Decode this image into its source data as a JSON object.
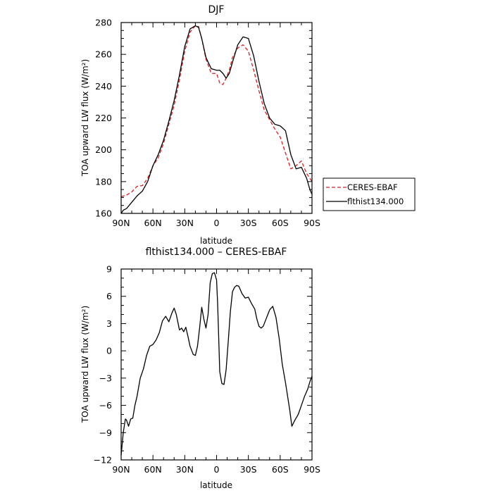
{
  "chart_data": [
    {
      "type": "line",
      "title": "DJF",
      "xlabel": "latitude",
      "ylabel": "TOA upward LW flux (W/m²)",
      "x_ticks": [
        {
          "value": 90,
          "label": "90N"
        },
        {
          "value": 60,
          "label": "60N"
        },
        {
          "value": 30,
          "label": "30N"
        },
        {
          "value": 0,
          "label": "0"
        },
        {
          "value": -30,
          "label": "30S"
        },
        {
          "value": -60,
          "label": "60S"
        },
        {
          "value": -90,
          "label": "90S"
        }
      ],
      "xlim": [
        90,
        -90
      ],
      "ylim": [
        160,
        280
      ],
      "y_ticks": [
        160,
        180,
        200,
        220,
        240,
        260,
        280
      ],
      "y_tick_labels": [
        "160",
        "180",
        "200",
        "220",
        "240",
        "260",
        "280"
      ],
      "legend": "right",
      "series": [
        {
          "name": "CERES-EBAF",
          "color": "#e41a1c",
          "dash": "dashed",
          "x": [
            90,
            85,
            80,
            75,
            70,
            65,
            60,
            55,
            50,
            45,
            40,
            35,
            30,
            25,
            20,
            17,
            14,
            10,
            5,
            0,
            -3,
            -6,
            -9,
            -12,
            -15,
            -20,
            -25,
            -30,
            -35,
            -40,
            -45,
            -50,
            -55,
            -60,
            -65,
            -70,
            -75,
            -80,
            -85,
            -90
          ],
          "values": [
            170.5,
            171.5,
            173.5,
            177,
            177.5,
            182,
            190,
            195,
            204,
            216,
            228,
            244,
            262,
            274,
            278,
            277.5,
            270,
            257,
            248,
            248,
            242,
            241,
            245,
            250,
            258,
            264,
            266,
            262,
            250,
            237,
            225,
            219,
            213,
            208,
            198,
            188,
            190,
            193,
            185,
            180
          ]
        },
        {
          "name": "flthist134.000",
          "color": "#000000",
          "dash": "solid",
          "x": [
            90,
            88,
            85,
            80,
            75,
            70,
            65,
            60,
            55,
            50,
            45,
            40,
            35,
            30,
            25,
            20,
            17,
            14,
            10,
            5,
            0,
            -3,
            -6,
            -9,
            -12,
            -15,
            -20,
            -25,
            -30,
            -35,
            -40,
            -45,
            -50,
            -55,
            -60,
            -65,
            -70,
            -75,
            -80,
            -85,
            -88,
            -90
          ],
          "values": [
            160,
            162,
            163,
            167,
            171,
            174,
            180,
            190,
            197,
            206,
            218,
            231,
            247,
            265,
            276,
            278,
            277,
            270,
            258,
            251,
            250,
            250,
            248,
            245,
            248,
            255,
            266,
            271,
            270,
            259,
            243,
            229,
            220,
            216,
            215,
            212,
            197,
            188,
            189,
            182,
            175,
            172
          ]
        }
      ]
    },
    {
      "type": "line",
      "title": "flthist134.000 – CERES-EBAF",
      "xlabel": "latitude",
      "ylabel": "TOA upward LW flux (W/m²)",
      "x_ticks": [
        {
          "value": 90,
          "label": "90N"
        },
        {
          "value": 60,
          "label": "60N"
        },
        {
          "value": 30,
          "label": "30N"
        },
        {
          "value": 0,
          "label": "0"
        },
        {
          "value": -30,
          "label": "30S"
        },
        {
          "value": -60,
          "label": "60S"
        },
        {
          "value": -90,
          "label": "90S"
        }
      ],
      "xlim": [
        90,
        -90
      ],
      "ylim": [
        -12,
        9
      ],
      "y_ticks": [
        -12,
        -9,
        -6,
        -3,
        0,
        3,
        6,
        9
      ],
      "y_tick_labels": [
        "−12",
        "−9",
        "−6",
        "−3",
        "0",
        "3",
        "6",
        "9"
      ],
      "series": [
        {
          "name": "",
          "color": "#000000",
          "dash": "solid",
          "x": [
            90,
            88,
            86,
            85,
            83,
            81,
            79,
            77,
            75,
            72,
            69,
            66,
            63,
            60,
            57,
            54,
            51,
            48,
            45,
            42,
            40,
            38,
            35,
            33,
            31,
            29,
            27,
            25,
            22,
            20,
            18,
            16,
            14,
            12,
            10,
            8,
            6,
            4,
            2,
            0,
            -1,
            -2,
            -3,
            -5,
            -7,
            -9,
            -11,
            -13,
            -15,
            -17,
            -19,
            -21,
            -24,
            -27,
            -30,
            -33,
            -36,
            -38,
            -40,
            -42,
            -44,
            -47,
            -50,
            -53,
            -56,
            -59,
            -62,
            -65,
            -67,
            -69,
            -71,
            -74,
            -77,
            -80,
            -83,
            -86,
            -88,
            -90
          ],
          "values": [
            -11.5,
            -9,
            -7.5,
            -7.6,
            -8.3,
            -7.5,
            -7.4,
            -6,
            -5,
            -3,
            -2,
            -0.5,
            0.5,
            0.7,
            1.2,
            2,
            3.3,
            3.8,
            3.2,
            4.2,
            4.7,
            4,
            2.3,
            2.5,
            2.1,
            2.6,
            1.6,
            0.5,
            -0.4,
            -0.5,
            0.5,
            2.5,
            4.8,
            3.5,
            2.5,
            4,
            7.5,
            8.5,
            8.6,
            7.8,
            5.2,
            1.5,
            -2.3,
            -3.6,
            -3.7,
            -2.1,
            1,
            4.3,
            6.5,
            7,
            7.2,
            7.1,
            6.3,
            5.8,
            5.9,
            5.2,
            4.6,
            3.5,
            2.7,
            2.5,
            2.7,
            3.6,
            4.5,
            4.9,
            3.7,
            1.4,
            -1.5,
            -3.5,
            -5,
            -6.5,
            -8.3,
            -7.6,
            -7,
            -6,
            -5,
            -4.2,
            -3.4,
            -2.8
          ]
        }
      ]
    }
  ]
}
